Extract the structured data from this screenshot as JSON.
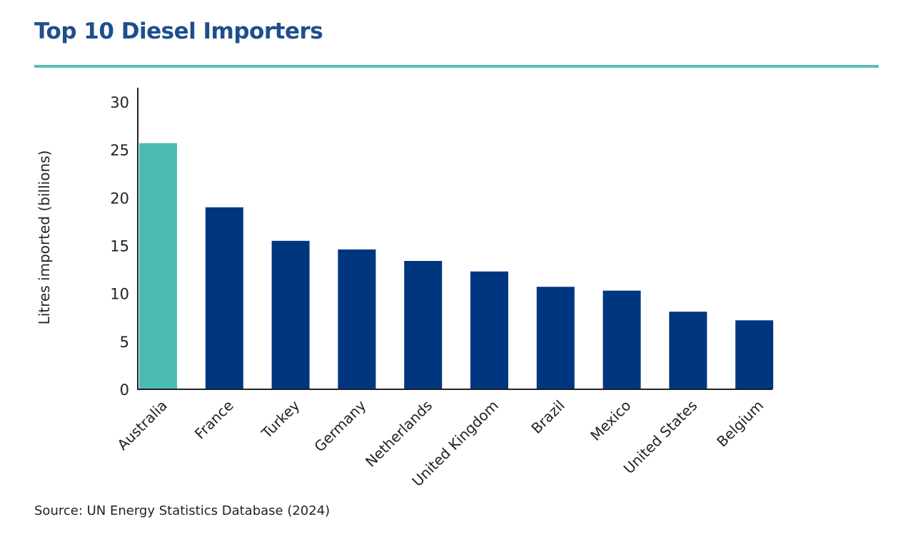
{
  "header": {
    "title": "Top 10 Diesel Importers"
  },
  "footer": {
    "source": "Source: UN Energy Statistics Database (2024)"
  },
  "colors": {
    "title": "#1f4e8c",
    "rule": "#5bbfb5",
    "highlight_bar": "#4bbab3",
    "bar": "#003580",
    "axis": "#222222"
  },
  "chart_data": {
    "type": "bar",
    "title": "Top 10 Diesel Importers",
    "ylabel": "Litres imported (billions)",
    "xlabel": "",
    "categories": [
      "Australia",
      "France",
      "Turkey",
      "Germany",
      "Netherlands",
      "United Kingdom",
      "Brazil",
      "Mexico",
      "United States",
      "Belgium"
    ],
    "values": [
      25.7,
      19.0,
      15.5,
      14.6,
      13.4,
      12.3,
      10.7,
      10.3,
      8.1,
      7.2
    ],
    "highlight": [
      "Australia"
    ],
    "ylim": [
      0,
      30
    ],
    "yticks": [
      "0",
      "5",
      "10",
      "15",
      "20",
      "25",
      "30"
    ],
    "grid": false,
    "legend": "none"
  }
}
